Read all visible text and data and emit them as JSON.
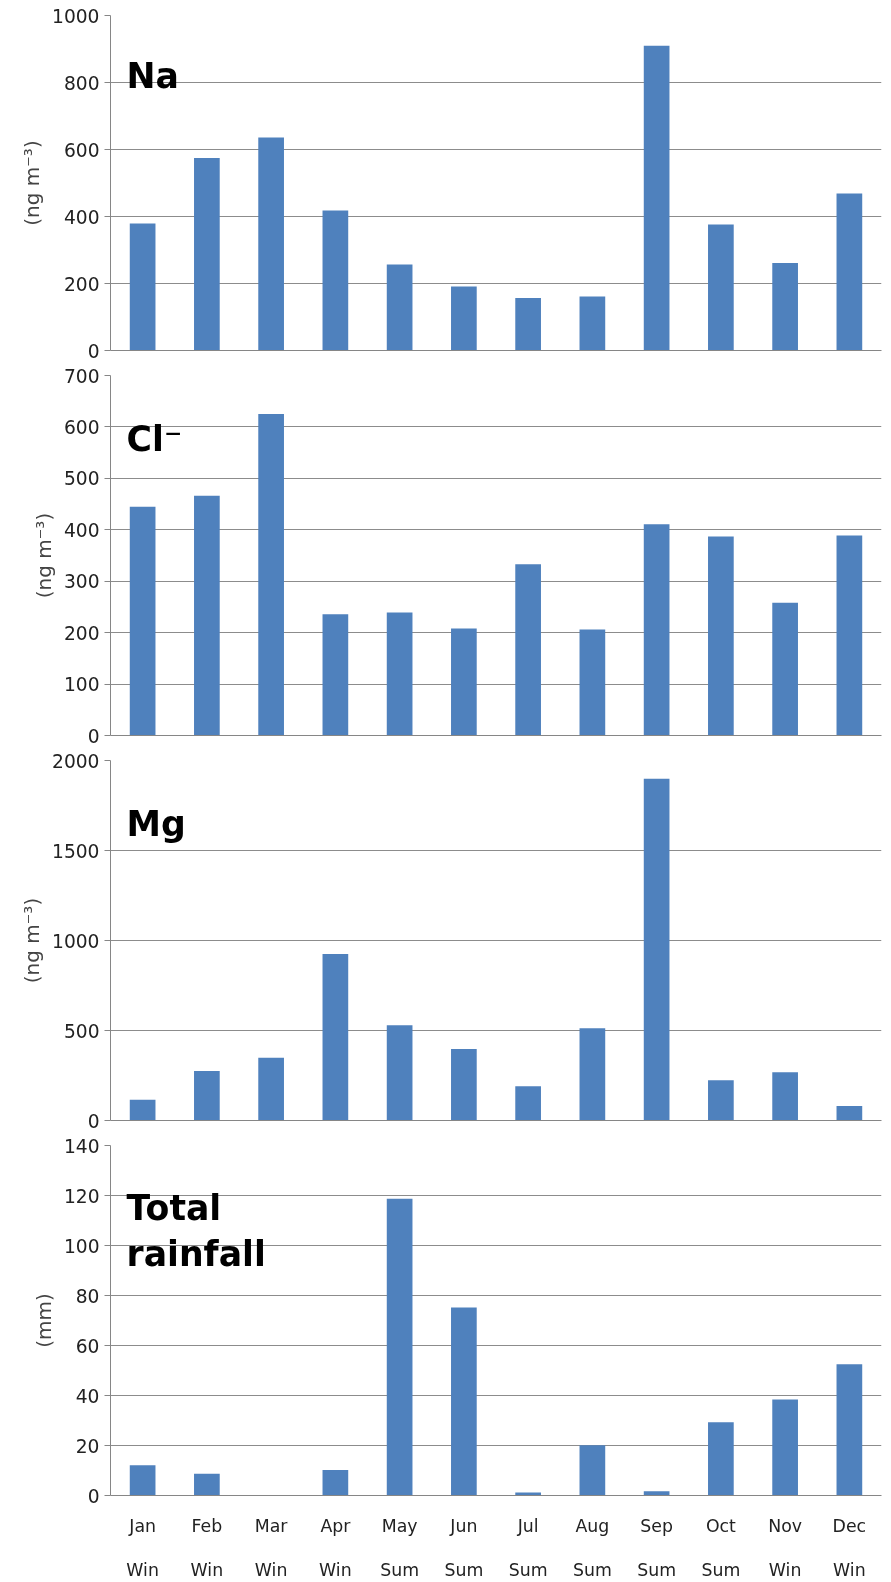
{
  "chart_data": [
    {
      "type": "bar",
      "ylabel": "(ng m⁻³)",
      "annotations": [
        "Na"
      ],
      "categories": [
        null,
        null,
        null,
        null,
        null,
        null,
        null,
        null,
        null,
        null,
        null,
        null
      ],
      "values": [
        379,
        575,
        636,
        418,
        257,
        191,
        157,
        161,
        910,
        376,
        261,
        469
      ],
      "color": "#4f81bd",
      "ylim": [
        0,
        1000
      ],
      "yticks": [
        0,
        200,
        400,
        600,
        800,
        1000
      ],
      "grid": "y",
      "tick_labels": "y"
    },
    {
      "type": "bar",
      "ylabel": "(ng m⁻³)",
      "annotations": [
        "Cl⁻"
      ],
      "categories": [
        null,
        null,
        null,
        null,
        null,
        null,
        null,
        null,
        null,
        null,
        null,
        null
      ],
      "values": [
        445,
        466,
        625,
        236,
        239,
        208,
        333,
        206,
        411,
        387,
        258,
        389
      ],
      "color": "#4f81bd",
      "ylim": [
        0,
        700
      ],
      "yticks": [
        0,
        100,
        200,
        300,
        400,
        500,
        600,
        700
      ],
      "grid": "y",
      "tick_labels": "y"
    },
    {
      "type": "bar",
      "ylabel": "(ng m⁻³)",
      "annotations": [
        "Mg"
      ],
      "categories": [
        null,
        null,
        null,
        null,
        null,
        null,
        null,
        null,
        null,
        null,
        null,
        null
      ],
      "values": [
        115,
        275,
        349,
        925,
        529,
        397,
        190,
        512,
        1898,
        224,
        268,
        81
      ],
      "color": "#4f81bd",
      "ylim": [
        0,
        2000
      ],
      "yticks": [
        0,
        500,
        1000,
        1500,
        2000
      ],
      "grid": "y",
      "tick_labels": "y"
    },
    {
      "type": "bar",
      "ylabel": "(mm)",
      "annotations": [
        "Total\nrainfall"
      ],
      "categories": [
        "Jan\nWin",
        "Feb\nWin",
        "Mar\nWin",
        "Apr\nWin",
        "May\nSum",
        "Jun\nSum",
        "Jul\nSum",
        "Aug\nSum",
        "Sep\nSum",
        "Oct\nSum",
        "Nov\nWin",
        "Dec\nWin"
      ],
      "values": [
        12.1,
        8.7,
        0,
        10.2,
        118.7,
        75.2,
        1.2,
        20.1,
        1.7,
        29.3,
        38.4,
        52.5
      ],
      "color": "#4f81bd",
      "ylim": [
        0,
        140
      ],
      "yticks": [
        0,
        20,
        40,
        60,
        80,
        100,
        120,
        140
      ],
      "grid": "y"
    }
  ]
}
